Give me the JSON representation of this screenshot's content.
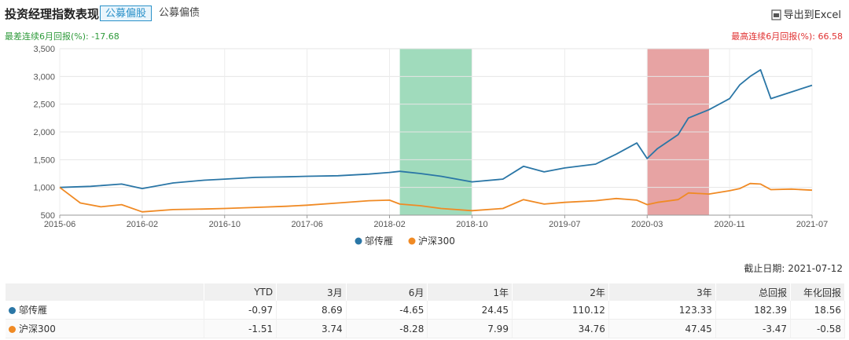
{
  "header": {
    "title": "投资经理指数表现",
    "tabs": [
      {
        "label": "公募偏股"
      },
      {
        "label": "公募偏债"
      }
    ],
    "export_label": "导出到Excel"
  },
  "stats": {
    "worst_6m": "最差连续6月回报(%): -17.68",
    "best_6m": "最高连续6月回报(%): 66.58"
  },
  "cutoff_date": "截止日期: 2021-07-12",
  "colors": {
    "manager": "#2a76a6",
    "index": "#f08a24",
    "green_band": "#8fd5b0",
    "red_band": "#e39393"
  },
  "chart_data": {
    "type": "line",
    "x_ticks": [
      "2015-06",
      "2016-02",
      "2016-10",
      "2017-06",
      "2018-02",
      "2018-10",
      "2019-07",
      "2020-03",
      "2020-11",
      "2021-07"
    ],
    "y_ticks": [
      500,
      1000,
      1500,
      2000,
      2500,
      3000,
      3500
    ],
    "ylim": [
      500,
      3500
    ],
    "grid": true,
    "legend_position": "bottom",
    "highlight_ranges": [
      {
        "start": "2018-03",
        "end": "2018-10",
        "color": "green"
      },
      {
        "start": "2020-03",
        "end": "2020-09",
        "color": "red"
      }
    ],
    "series": [
      {
        "name": "邬传雁",
        "x": [
          "2015-06",
          "2015-09",
          "2015-12",
          "2016-02",
          "2016-05",
          "2016-08",
          "2016-10",
          "2017-01",
          "2017-04",
          "2017-06",
          "2017-09",
          "2017-12",
          "2018-02",
          "2018-03",
          "2018-05",
          "2018-07",
          "2018-10",
          "2019-01",
          "2019-03",
          "2019-05",
          "2019-07",
          "2019-10",
          "2019-12",
          "2020-02",
          "2020-03",
          "2020-04",
          "2020-06",
          "2020-07",
          "2020-09",
          "2020-11",
          "2020-12",
          "2021-01",
          "2021-02",
          "2021-03",
          "2021-05",
          "2021-07"
        ],
        "values": [
          1000,
          1020,
          1060,
          980,
          1080,
          1130,
          1150,
          1180,
          1190,
          1200,
          1210,
          1240,
          1270,
          1290,
          1250,
          1200,
          1100,
          1150,
          1380,
          1280,
          1350,
          1420,
          1600,
          1800,
          1520,
          1700,
          1950,
          2250,
          2400,
          2600,
          2850,
          3000,
          3120,
          2600,
          2720,
          2840
        ]
      },
      {
        "name": "沪深300",
        "x": [
          "2015-06",
          "2015-08",
          "2015-10",
          "2015-12",
          "2016-02",
          "2016-05",
          "2016-08",
          "2016-10",
          "2017-01",
          "2017-04",
          "2017-06",
          "2017-09",
          "2017-12",
          "2018-02",
          "2018-03",
          "2018-05",
          "2018-07",
          "2018-10",
          "2019-01",
          "2019-03",
          "2019-05",
          "2019-07",
          "2019-10",
          "2019-12",
          "2020-02",
          "2020-03",
          "2020-04",
          "2020-06",
          "2020-07",
          "2020-09",
          "2020-11",
          "2020-12",
          "2021-01",
          "2021-02",
          "2021-03",
          "2021-05",
          "2021-07"
        ],
        "values": [
          1000,
          720,
          650,
          690,
          560,
          600,
          610,
          620,
          640,
          660,
          680,
          720,
          760,
          770,
          700,
          670,
          620,
          580,
          620,
          780,
          700,
          730,
          760,
          800,
          770,
          690,
          730,
          780,
          900,
          880,
          940,
          980,
          1070,
          1060,
          960,
          970,
          950
        ]
      }
    ]
  },
  "table": {
    "headers": [
      "",
      "YTD",
      "3月",
      "6月",
      "1年",
      "2年",
      "3年",
      "总回报",
      "年化回报"
    ],
    "rows": [
      {
        "name": "邬传雁",
        "values": [
          "-0.97",
          "8.69",
          "-4.65",
          "24.45",
          "110.12",
          "123.33",
          "182.39",
          "18.56"
        ]
      },
      {
        "name": "沪深300",
        "values": [
          "-1.51",
          "3.74",
          "-8.28",
          "7.99",
          "34.76",
          "47.45",
          "-3.47",
          "-0.58"
        ]
      }
    ]
  }
}
